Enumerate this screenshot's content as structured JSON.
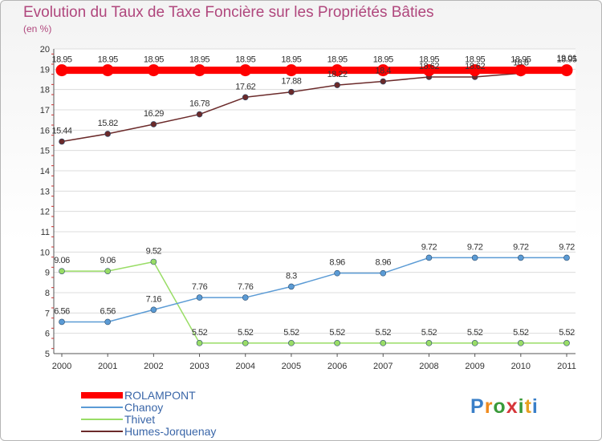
{
  "title": "Evolution du Taux de Taxe Foncière sur les Propriétés Bâties",
  "subtitle": "(en %)",
  "logo": {
    "text": "Proxiti",
    "letter_colors": [
      "#3a7fc8",
      "#f08a1c",
      "#3a9a3a",
      "#d6363a",
      "#3a9a3a",
      "#e8a020",
      "#3a7fc8"
    ]
  },
  "chart_data": {
    "type": "line",
    "title": "Evolution du Taux de Taxe Foncière sur les Propriétés Bâties",
    "ylabel": "(en %)",
    "xlabel": "",
    "ylim": [
      5,
      20
    ],
    "yticks": [
      "5",
      "6",
      "7",
      "8",
      "9",
      "10",
      "11",
      "12",
      "13",
      "14",
      "15",
      "16",
      "17",
      "18",
      "19",
      "20"
    ],
    "categories": [
      "2000",
      "2001",
      "2002",
      "2003",
      "2004",
      "2005",
      "2006",
      "2007",
      "2008",
      "2009",
      "2010",
      "2011"
    ],
    "legend_position": "bottom-left",
    "series": [
      {
        "name": "ROLAMPONT",
        "color": "#ff0000",
        "values": [
          18.95,
          18.95,
          18.95,
          18.95,
          18.95,
          18.95,
          18.95,
          18.95,
          18.95,
          18.95,
          18.95,
          18.95
        ],
        "labels": [
          "18.95",
          "18.95",
          "18.95",
          "18.95",
          "18.95",
          "18.95",
          "18.95",
          "18.95",
          "18.95",
          "18.95",
          "18.95",
          "18.95"
        ]
      },
      {
        "name": "Chanoy",
        "color": "#5b9bd5",
        "values": [
          6.56,
          6.56,
          7.16,
          7.76,
          7.76,
          8.3,
          8.96,
          8.96,
          9.72,
          9.72,
          9.72,
          9.72
        ],
        "labels": [
          "6.56",
          "6.56",
          "7.16",
          "7.76",
          "7.76",
          "8.3",
          "8.96",
          "8.96",
          "9.72",
          "9.72",
          "9.72",
          "9.72"
        ]
      },
      {
        "name": "Thivet",
        "color": "#99dd66",
        "values": [
          9.06,
          9.06,
          9.52,
          5.52,
          5.52,
          5.52,
          5.52,
          5.52,
          5.52,
          5.52,
          5.52,
          5.52
        ],
        "labels": [
          "9.06",
          "9.06",
          "9.52",
          "5.52",
          "5.52",
          "5.52",
          "5.52",
          "5.52",
          "5.52",
          "5.52",
          "5.52",
          "5.52"
        ]
      },
      {
        "name": "Humes-Jorquenay",
        "color": "#6b2a2a",
        "values": [
          15.44,
          15.82,
          16.29,
          16.78,
          17.62,
          17.88,
          18.22,
          18.4,
          18.62,
          18.62,
          18.8,
          19.01
        ],
        "labels": [
          "15.44",
          "15.82",
          "16.29",
          "16.78",
          "17.62",
          "17.88",
          "18.22",
          "18.4",
          "18.62",
          "18.62",
          "18.8",
          "19.01"
        ]
      }
    ]
  }
}
